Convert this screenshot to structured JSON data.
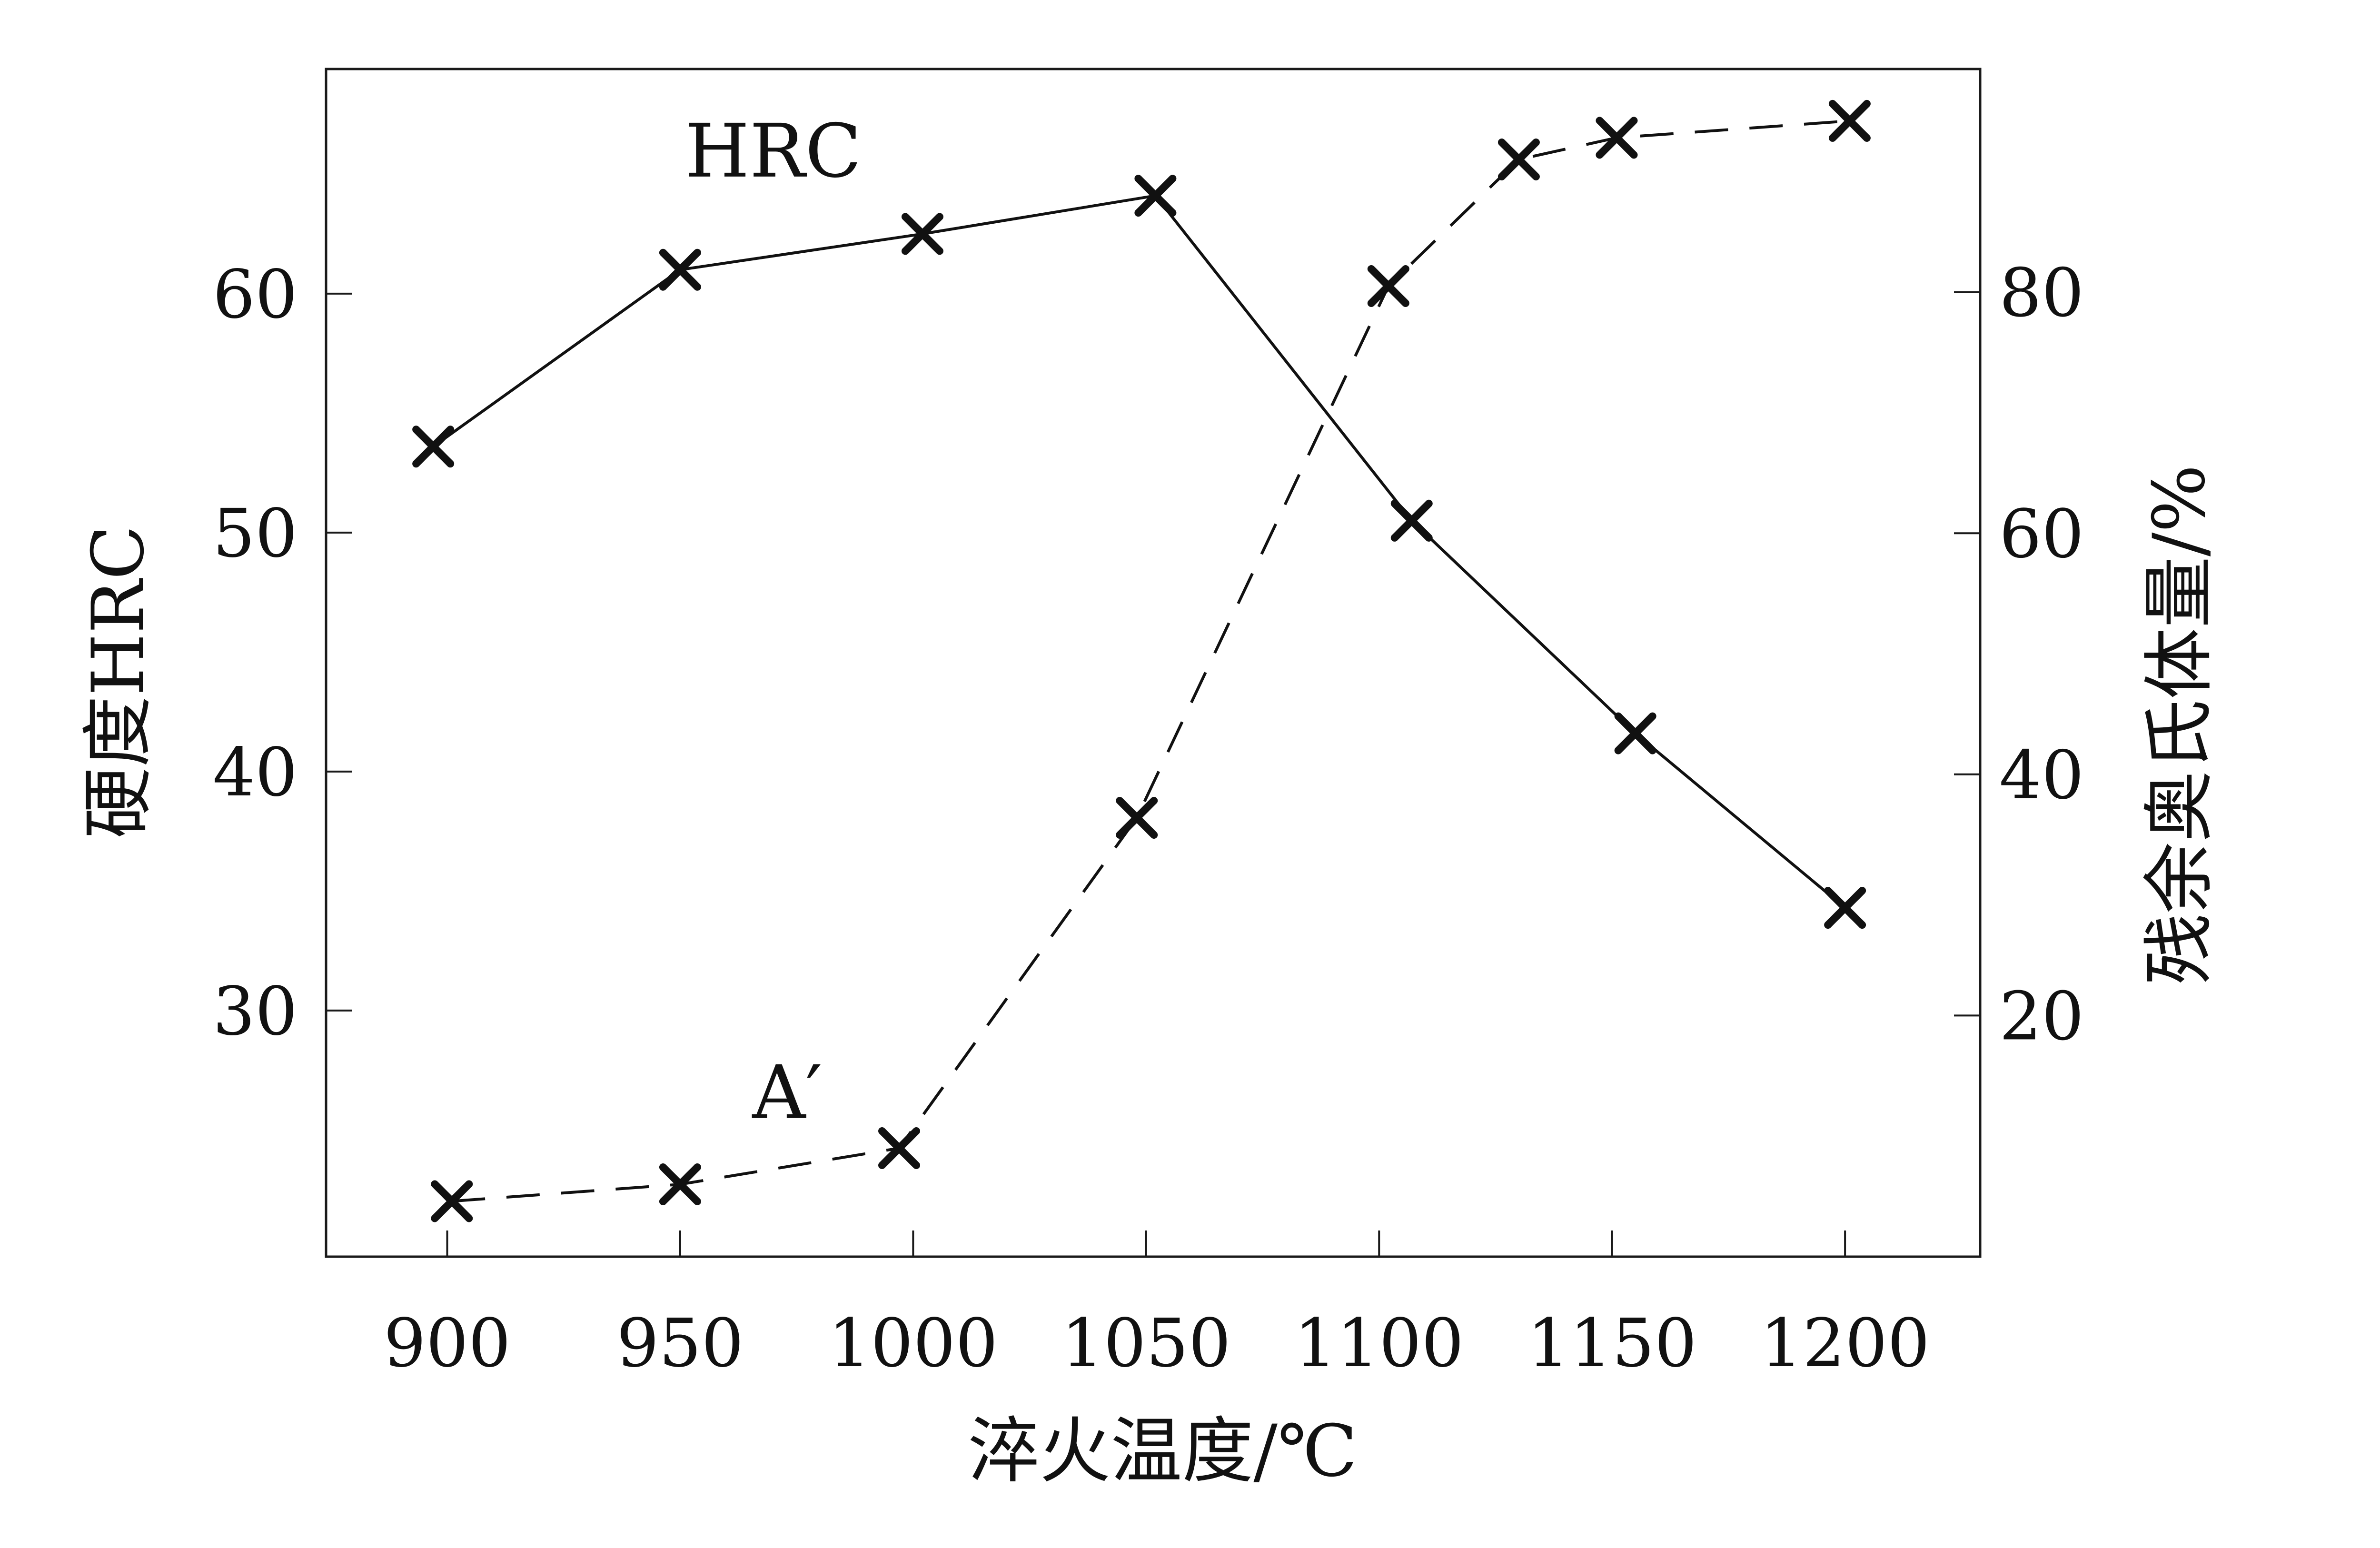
{
  "chart_data": {
    "type": "line",
    "title": "",
    "xlabel": "淬火温度/℃",
    "ylabel_left": "硬度HRC",
    "ylabel_right": "残余奥氏体量/%",
    "xlim": [
      874,
      1229
    ],
    "ylim_left": [
      19.7,
      69.4
    ],
    "ylim_right": [
      0,
      98.5
    ],
    "xticks": [
      900,
      950,
      1000,
      1050,
      1100,
      1150,
      1200
    ],
    "yticks_left": [
      30,
      40,
      50,
      60
    ],
    "yticks_right": [
      20,
      40,
      60,
      80
    ],
    "grid": false,
    "series": [
      {
        "name": "HRC",
        "axis": "left",
        "style": "solid",
        "x": [
          897,
          950,
          1002,
          1052,
          1107,
          1155,
          1200
        ],
        "y": [
          53.6,
          61.0,
          62.5,
          64.1,
          50.5,
          41.6,
          34.3
        ]
      },
      {
        "name": "A′",
        "axis": "right",
        "style": "dashed",
        "x": [
          901,
          950,
          997,
          1048,
          1102,
          1130,
          1151,
          1201
        ],
        "y": [
          4.6,
          6.0,
          9.0,
          36.4,
          80.5,
          91.0,
          92.8,
          94.2
        ]
      }
    ]
  }
}
